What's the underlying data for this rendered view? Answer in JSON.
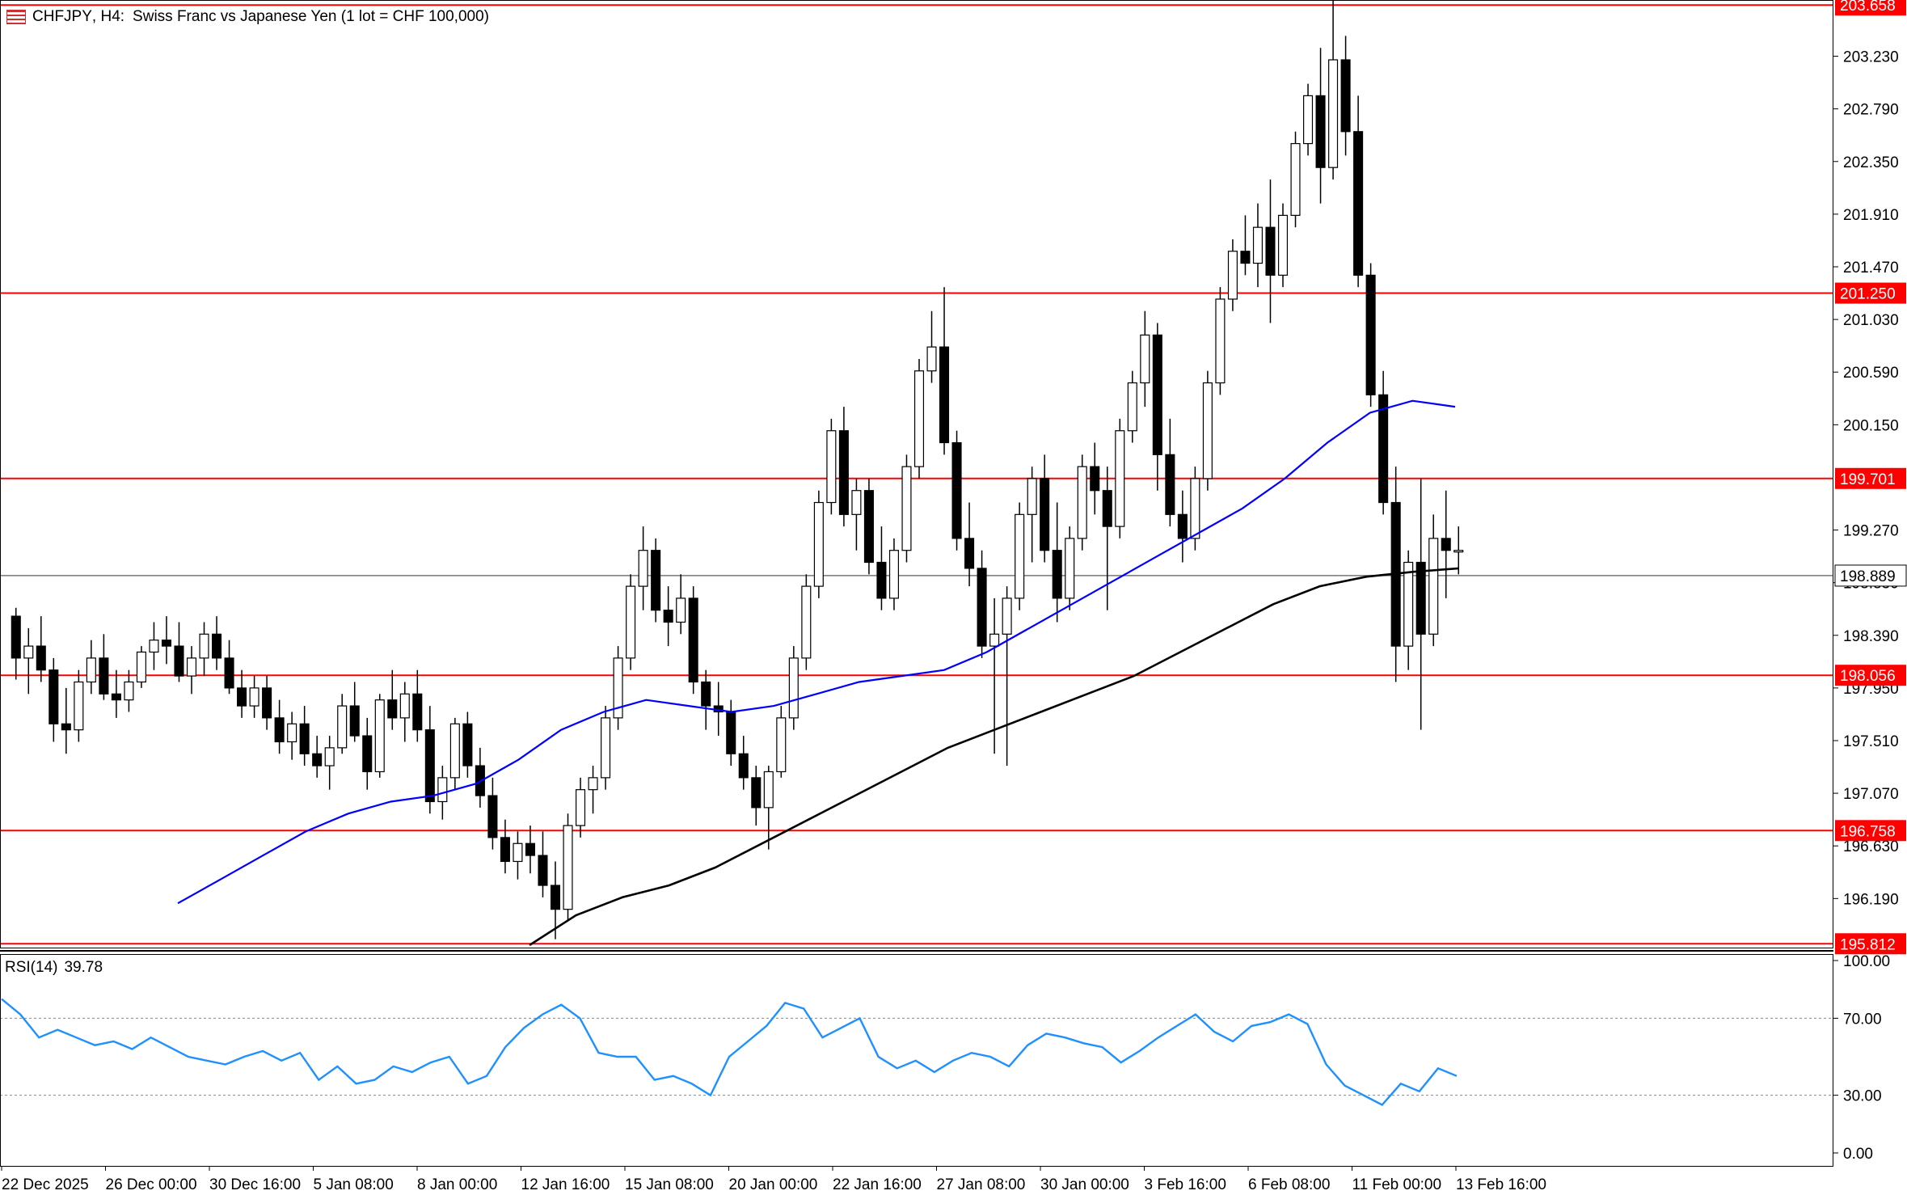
{
  "window": {
    "symbol": "CHFJPY",
    "timeframe": "H4:",
    "description": "Swiss Franc vs Japanese Yen (1 lot = CHF 100,000)",
    "icon": "chart-window-icon"
  },
  "chart_data": [
    {
      "type": "candlestick",
      "title": "CHFJPY, H4:  Swiss Franc vs Japanese Yen (1 lot = CHF 100,000)",
      "ylim": [
        195.78,
        203.7
      ],
      "y_ticks": [
        "203.230",
        "202.790",
        "202.350",
        "201.910",
        "201.470",
        "201.030",
        "200.590",
        "200.150",
        "199.270",
        "198.830",
        "198.390",
        "197.950",
        "197.510",
        "197.070",
        "196.630",
        "196.190"
      ],
      "x_ticks": [
        "22 Dec 2025",
        "26 Dec 00:00",
        "30 Dec 16:00",
        "5 Jan 08:00",
        "8 Jan 00:00",
        "12 Jan 16:00",
        "15 Jan 08:00",
        "20 Jan 00:00",
        "22 Jan 16:00",
        "27 Jan 08:00",
        "30 Jan 00:00",
        "3 Feb 16:00",
        "6 Feb 08:00",
        "11 Feb 00:00",
        "13 Feb 16:00"
      ],
      "horizontal_levels": [
        {
          "value": 203.658,
          "label": "203.658",
          "color": "#ff0000"
        },
        {
          "value": 201.25,
          "label": "201.250",
          "color": "#ff0000"
        },
        {
          "value": 199.701,
          "label": "199.701",
          "color": "#ff0000"
        },
        {
          "value": 198.056,
          "label": "198.056",
          "color": "#ff0000"
        },
        {
          "value": 196.758,
          "label": "196.758",
          "color": "#ff0000"
        },
        {
          "value": 195.812,
          "label": "195.812",
          "color": "#ff0000"
        }
      ],
      "current_price": {
        "value": 198.889,
        "label": "198.889",
        "color": "#000000"
      },
      "series": [
        {
          "name": "price",
          "type": "candlestick",
          "up_color": "#ffffff",
          "down_color": "#000000",
          "candles_ohlc_estimated": [
            [
              198.55,
              198.62,
              198.02,
              198.2
            ],
            [
              198.2,
              198.45,
              197.9,
              198.3
            ],
            [
              198.3,
              198.55,
              198.0,
              198.1
            ],
            [
              198.1,
              198.2,
              197.5,
              197.65
            ],
            [
              197.65,
              197.95,
              197.4,
              197.6
            ],
            [
              197.6,
              198.1,
              197.5,
              198.0
            ],
            [
              198.0,
              198.35,
              197.9,
              198.2
            ],
            [
              198.2,
              198.4,
              197.85,
              197.9
            ],
            [
              197.9,
              198.1,
              197.7,
              197.85
            ],
            [
              197.85,
              198.1,
              197.75,
              198.0
            ],
            [
              198.0,
              198.3,
              197.95,
              198.25
            ],
            [
              198.25,
              198.5,
              198.1,
              198.35
            ],
            [
              198.35,
              198.55,
              198.15,
              198.3
            ],
            [
              198.3,
              198.5,
              198.0,
              198.05
            ],
            [
              198.05,
              198.3,
              197.9,
              198.2
            ],
            [
              198.2,
              198.5,
              198.05,
              198.4
            ],
            [
              198.4,
              198.55,
              198.1,
              198.2
            ],
            [
              198.2,
              198.35,
              197.9,
              197.95
            ],
            [
              197.95,
              198.1,
              197.7,
              197.8
            ],
            [
              197.8,
              198.05,
              197.7,
              197.95
            ],
            [
              197.95,
              198.05,
              197.6,
              197.7
            ],
            [
              197.7,
              197.85,
              197.4,
              197.5
            ],
            [
              197.5,
              197.75,
              197.35,
              197.65
            ],
            [
              197.65,
              197.8,
              197.3,
              197.4
            ],
            [
              197.4,
              197.55,
              197.2,
              197.3
            ],
            [
              197.3,
              197.55,
              197.1,
              197.45
            ],
            [
              197.45,
              197.9,
              197.4,
              197.8
            ],
            [
              197.8,
              198.0,
              197.5,
              197.55
            ],
            [
              197.55,
              197.7,
              197.1,
              197.25
            ],
            [
              197.25,
              197.9,
              197.2,
              197.85
            ],
            [
              197.85,
              198.1,
              197.6,
              197.7
            ],
            [
              197.7,
              198.0,
              197.5,
              197.9
            ],
            [
              197.9,
              198.1,
              197.5,
              197.6
            ],
            [
              197.6,
              197.8,
              196.9,
              197.0
            ],
            [
              197.0,
              197.3,
              196.85,
              197.2
            ],
            [
              197.2,
              197.7,
              197.1,
              197.65
            ],
            [
              197.65,
              197.75,
              197.2,
              197.3
            ],
            [
              197.3,
              197.45,
              196.95,
              197.05
            ],
            [
              197.05,
              197.2,
              196.6,
              196.7
            ],
            [
              196.7,
              196.85,
              196.4,
              196.5
            ],
            [
              196.5,
              196.75,
              196.35,
              196.65
            ],
            [
              196.65,
              196.8,
              196.4,
              196.55
            ],
            [
              196.55,
              196.75,
              196.2,
              196.3
            ],
            [
              196.3,
              196.5,
              195.85,
              196.1
            ],
            [
              196.1,
              196.9,
              196.0,
              196.8
            ],
            [
              196.8,
              197.2,
              196.7,
              197.1
            ],
            [
              197.1,
              197.3,
              196.9,
              197.2
            ],
            [
              197.2,
              197.8,
              197.1,
              197.7
            ],
            [
              197.7,
              198.3,
              197.6,
              198.2
            ],
            [
              198.2,
              198.9,
              198.1,
              198.8
            ],
            [
              198.8,
              199.3,
              198.6,
              199.1
            ],
            [
              199.1,
              199.2,
              198.5,
              198.6
            ],
            [
              198.6,
              198.8,
              198.3,
              198.5
            ],
            [
              198.5,
              198.9,
              198.4,
              198.7
            ],
            [
              198.7,
              198.8,
              197.9,
              198.0
            ],
            [
              198.0,
              198.1,
              197.6,
              197.8
            ],
            [
              197.8,
              198.0,
              197.55,
              197.75
            ],
            [
              197.75,
              197.85,
              197.3,
              197.4
            ],
            [
              197.4,
              197.55,
              197.1,
              197.2
            ],
            [
              197.2,
              197.3,
              196.8,
              196.95
            ],
            [
              196.95,
              197.3,
              196.6,
              197.25
            ],
            [
              197.25,
              197.8,
              197.2,
              197.7
            ],
            [
              197.7,
              198.3,
              197.6,
              198.2
            ],
            [
              198.2,
              198.9,
              198.1,
              198.8
            ],
            [
              198.8,
              199.6,
              198.7,
              199.5
            ],
            [
              199.5,
              200.2,
              199.4,
              200.1
            ],
            [
              200.1,
              200.3,
              199.3,
              199.4
            ],
            [
              199.4,
              199.7,
              199.1,
              199.6
            ],
            [
              199.6,
              199.7,
              198.9,
              199.0
            ],
            [
              199.0,
              199.3,
              198.6,
              198.7
            ],
            [
              198.7,
              199.2,
              198.6,
              199.1
            ],
            [
              199.1,
              199.9,
              199.0,
              199.8
            ],
            [
              199.8,
              200.7,
              199.7,
              200.6
            ],
            [
              200.6,
              201.1,
              200.5,
              200.8
            ],
            [
              200.8,
              201.3,
              199.9,
              200.0
            ],
            [
              200.0,
              200.1,
              199.1,
              199.2
            ],
            [
              199.2,
              199.5,
              198.8,
              198.95
            ],
            [
              198.95,
              199.1,
              198.2,
              198.3
            ],
            [
              198.3,
              198.7,
              197.4,
              198.4
            ],
            [
              198.4,
              198.8,
              197.3,
              198.7
            ],
            [
              198.7,
              199.5,
              198.6,
              199.4
            ],
            [
              199.4,
              199.8,
              199.0,
              199.7
            ],
            [
              199.7,
              199.9,
              199.0,
              199.1
            ],
            [
              199.1,
              199.5,
              198.5,
              198.7
            ],
            [
              198.7,
              199.3,
              198.6,
              199.2
            ],
            [
              199.2,
              199.9,
              199.1,
              199.8
            ],
            [
              199.8,
              200.0,
              199.4,
              199.6
            ],
            [
              199.6,
              199.8,
              198.6,
              199.3
            ],
            [
              199.3,
              200.2,
              199.2,
              200.1
            ],
            [
              200.1,
              200.6,
              200.0,
              200.5
            ],
            [
              200.5,
              201.1,
              200.3,
              200.9
            ],
            [
              200.9,
              201.0,
              199.6,
              199.9
            ],
            [
              199.9,
              200.2,
              199.3,
              199.4
            ],
            [
              199.4,
              199.6,
              199.0,
              199.2
            ],
            [
              199.2,
              199.8,
              199.1,
              199.7
            ],
            [
              199.7,
              200.6,
              199.6,
              200.5
            ],
            [
              200.5,
              201.3,
              200.4,
              201.2
            ],
            [
              201.2,
              201.7,
              201.1,
              201.6
            ],
            [
              201.6,
              201.9,
              201.4,
              201.5
            ],
            [
              201.5,
              202.0,
              201.3,
              201.8
            ],
            [
              201.8,
              202.2,
              201.0,
              201.4
            ],
            [
              201.4,
              202.0,
              201.3,
              201.9
            ],
            [
              201.9,
              202.6,
              201.8,
              202.5
            ],
            [
              202.5,
              203.0,
              202.4,
              202.9
            ],
            [
              202.9,
              203.3,
              202.0,
              202.3
            ],
            [
              202.3,
              203.7,
              202.2,
              203.2
            ],
            [
              203.2,
              203.4,
              202.4,
              202.6
            ],
            [
              202.6,
              202.9,
              201.3,
              201.4
            ],
            [
              201.4,
              201.5,
              200.3,
              200.4
            ],
            [
              200.4,
              200.6,
              199.4,
              199.5
            ],
            [
              199.5,
              199.8,
              198.0,
              198.3
            ],
            [
              198.3,
              199.1,
              198.1,
              199.0
            ],
            [
              199.0,
              199.7,
              197.6,
              198.4
            ],
            [
              198.4,
              199.4,
              198.3,
              199.2
            ],
            [
              199.2,
              199.6,
              198.7,
              199.1
            ],
            [
              199.1,
              199.3,
              198.9,
              199.1
            ]
          ]
        },
        {
          "name": "",
          "type": "moving_average",
          "color": "#0000ff",
          "values": [
            196.15,
            196.35,
            196.55,
            196.75,
            196.9,
            197.0,
            197.05,
            197.15,
            197.35,
            197.6,
            197.75,
            197.85,
            197.8,
            197.75,
            197.8,
            197.9,
            198.0,
            198.05,
            198.1,
            198.25,
            198.45,
            198.65,
            198.85,
            199.05,
            199.25,
            199.45,
            199.7,
            200.0,
            200.25,
            200.35,
            200.3
          ]
        },
        {
          "name": "",
          "type": "moving_average",
          "color": "#000000",
          "values": [
            195.8,
            196.05,
            196.2,
            196.3,
            196.45,
            196.65,
            196.85,
            197.05,
            197.25,
            197.45,
            197.6,
            197.75,
            197.9,
            198.05,
            198.25,
            198.45,
            198.65,
            198.8,
            198.88,
            198.92,
            198.95
          ]
        }
      ]
    },
    {
      "type": "line",
      "title": "RSI(14) 39.78",
      "indicator": "RSI(14)",
      "value_label": "39.78",
      "ylim": [
        0,
        100
      ],
      "y_ticks": [
        "100.00",
        "70.00",
        "30.00",
        "0.00"
      ],
      "levels": [
        70,
        30
      ],
      "series": [
        {
          "name": "RSI(14)",
          "color": "#1e90ff",
          "values": [
            80,
            72,
            60,
            64,
            60,
            56,
            58,
            54,
            60,
            55,
            50,
            48,
            46,
            50,
            53,
            48,
            52,
            38,
            45,
            36,
            38,
            45,
            42,
            47,
            50,
            36,
            40,
            55,
            65,
            72,
            77,
            70,
            52,
            50,
            50,
            38,
            40,
            36,
            30,
            50,
            58,
            66,
            78,
            75,
            60,
            65,
            70,
            50,
            44,
            48,
            42,
            48,
            52,
            50,
            45,
            56,
            62,
            60,
            57,
            55,
            47,
            53,
            60,
            66,
            72,
            63,
            58,
            66,
            68,
            72,
            67,
            46,
            35,
            30,
            25,
            36,
            32,
            44,
            40
          ]
        }
      ]
    }
  ]
}
